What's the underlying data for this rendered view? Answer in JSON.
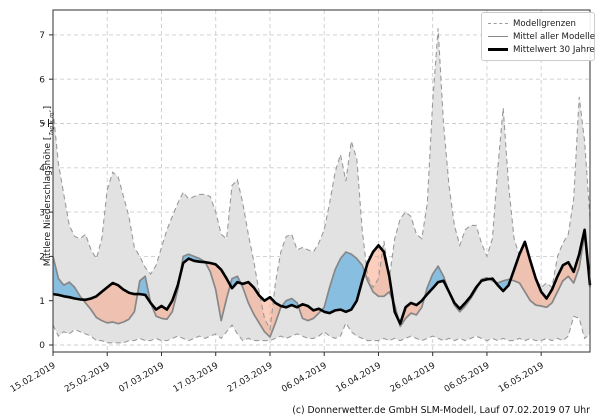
{
  "footer": {
    "text": "(c) Donnerwetter.de GmbH SLM-Modell, Lauf 07.02.2019 07 Uhr"
  },
  "chart_data": {
    "type": "line",
    "title": "",
    "ylabel_prefix": "Mittlere Niederschlagshöhe [",
    "ylabel_fraction_numerator": "L",
    "ylabel_fraction_denominator": "Tag × m²",
    "ylabel_suffix": "]",
    "x_start_date": "15.02.2019",
    "x_step_days": 1,
    "xlim": [
      0,
      99
    ],
    "ylim": [
      -0.16,
      7.56
    ],
    "grid": true,
    "x_tick_days": [
      0,
      10,
      20,
      30,
      40,
      50,
      60,
      70,
      80,
      90
    ],
    "x_tick_labels": [
      "15.02.2019",
      "25.02.2019",
      "07.03.2019",
      "17.03.2019",
      "27.03.2019",
      "06.04.2019",
      "16.04.2019",
      "26.04.2019",
      "06.05.2019",
      "16.05.2019"
    ],
    "y_ticks": [
      0,
      1,
      2,
      3,
      4,
      5,
      6,
      7
    ],
    "y_tick_labels": [
      "0",
      "1",
      "2",
      "3",
      "4",
      "5",
      "6",
      "7"
    ],
    "legend": {
      "position": "upper right",
      "entries": [
        {
          "label": "Modellgrenzen",
          "style": "dashed-gray"
        },
        {
          "label": "Mittel aller Modelle",
          "style": "solid-gray"
        },
        {
          "label": "Mittelwert 30 Jahre",
          "style": "solid-black-thick"
        }
      ]
    },
    "series": [
      {
        "name": "Modellgrenze oben",
        "role": "band-upper",
        "values": [
          5.3,
          4.1,
          3.4,
          2.7,
          2.45,
          2.4,
          2.5,
          2.15,
          1.95,
          2.4,
          3.5,
          3.9,
          3.8,
          3.35,
          2.9,
          2.2,
          2.0,
          1.75,
          1.6,
          1.8,
          2.2,
          2.6,
          2.9,
          3.2,
          3.45,
          3.3,
          3.35,
          3.4,
          3.4,
          3.35,
          3.0,
          2.5,
          2.4,
          3.6,
          3.73,
          3.2,
          2.5,
          1.9,
          1.2,
          0.6,
          0.35,
          1.4,
          2.1,
          2.45,
          2.5,
          2.15,
          2.2,
          2.15,
          2.1,
          2.3,
          2.6,
          3.2,
          3.9,
          4.3,
          3.7,
          4.6,
          4.2,
          2.6,
          1.55,
          1.3,
          1.5,
          2.35,
          1.5,
          2.4,
          2.85,
          3.0,
          2.9,
          2.5,
          2.4,
          3.2,
          5.5,
          7.15,
          5.0,
          3.6,
          2.7,
          2.25,
          2.6,
          2.7,
          2.7,
          2.3,
          2.0,
          2.4,
          4.0,
          5.35,
          3.6,
          2.4,
          2.0,
          2.3,
          1.9,
          1.5,
          1.3,
          1.4,
          1.3,
          2.0,
          2.3,
          2.5,
          3.3,
          5.6,
          4.6,
          2.85
        ]
      },
      {
        "name": "Modellgrenze unten",
        "role": "band-lower",
        "values": [
          0.45,
          0.2,
          0.3,
          0.25,
          0.35,
          0.3,
          0.25,
          0.2,
          0.1,
          0.1,
          0.05,
          0.05,
          0.05,
          0.05,
          0.1,
          0.1,
          0.15,
          0.1,
          0.1,
          0.15,
          0.1,
          0.1,
          0.15,
          0.2,
          0.15,
          0.1,
          0.15,
          0.2,
          0.15,
          0.2,
          0.25,
          0.15,
          0.3,
          0.45,
          0.25,
          0.1,
          0.15,
          0.1,
          0.1,
          0.1,
          0.1,
          0.15,
          0.2,
          0.15,
          0.2,
          0.25,
          0.2,
          0.15,
          0.15,
          0.2,
          0.3,
          0.2,
          0.15,
          0.2,
          0.5,
          0.3,
          0.2,
          0.15,
          0.1,
          0.1,
          0.1,
          0.15,
          0.1,
          0.15,
          0.1,
          0.15,
          0.2,
          0.15,
          0.1,
          0.15,
          0.2,
          0.15,
          0.1,
          0.15,
          0.1,
          0.15,
          0.1,
          0.15,
          0.2,
          0.15,
          0.1,
          0.15,
          0.1,
          0.15,
          0.1,
          0.1,
          0.15,
          0.1,
          0.15,
          0.1,
          0.1,
          0.15,
          0.1,
          0.15,
          0.1,
          0.2,
          0.65,
          0.6,
          0.15,
          0.25
        ]
      },
      {
        "name": "Mittel aller Modelle",
        "role": "model-mean",
        "values": [
          2.0,
          1.5,
          1.35,
          1.42,
          1.3,
          1.1,
          0.95,
          0.8,
          0.62,
          0.55,
          0.5,
          0.52,
          0.48,
          0.52,
          0.58,
          0.75,
          1.45,
          1.55,
          0.95,
          0.65,
          0.6,
          0.58,
          0.75,
          1.25,
          2.0,
          2.05,
          2.0,
          1.95,
          1.88,
          1.65,
          1.25,
          0.55,
          1.05,
          1.5,
          1.55,
          1.3,
          0.95,
          0.7,
          0.5,
          0.3,
          0.18,
          0.5,
          0.85,
          1.0,
          1.05,
          0.95,
          0.6,
          0.55,
          0.6,
          0.72,
          0.85,
          1.3,
          1.7,
          1.95,
          2.1,
          2.05,
          1.95,
          1.8,
          1.45,
          1.2,
          1.1,
          1.1,
          1.2,
          0.9,
          0.42,
          0.6,
          0.72,
          0.68,
          0.85,
          1.3,
          1.6,
          1.78,
          1.55,
          1.2,
          0.9,
          0.75,
          0.88,
          1.05,
          1.25,
          1.48,
          1.52,
          1.45,
          1.4,
          1.45,
          1.48,
          1.45,
          1.4,
          1.2,
          1.0,
          0.9,
          0.88,
          0.85,
          0.95,
          1.2,
          1.45,
          1.55,
          1.4,
          1.75,
          2.5,
          1.3
        ]
      },
      {
        "name": "Mittelwert 30 Jahre",
        "role": "mean-30y",
        "values": [
          1.15,
          1.13,
          1.1,
          1.08,
          1.05,
          1.03,
          1.02,
          1.05,
          1.1,
          1.2,
          1.3,
          1.4,
          1.35,
          1.25,
          1.18,
          1.15,
          1.15,
          1.13,
          0.95,
          0.8,
          0.88,
          0.8,
          1.0,
          1.35,
          1.85,
          1.95,
          1.9,
          1.88,
          1.87,
          1.85,
          1.82,
          1.7,
          1.5,
          1.28,
          1.42,
          1.38,
          1.42,
          1.3,
          1.12,
          1.0,
          1.08,
          0.95,
          0.88,
          0.85,
          0.9,
          0.85,
          0.92,
          0.88,
          0.78,
          0.82,
          0.75,
          0.72,
          0.78,
          0.8,
          0.75,
          0.8,
          1.0,
          1.45,
          1.85,
          2.1,
          2.25,
          2.1,
          1.55,
          0.75,
          0.48,
          0.85,
          0.95,
          0.9,
          1.0,
          1.15,
          1.28,
          1.42,
          1.45,
          1.2,
          0.95,
          0.82,
          0.95,
          1.1,
          1.3,
          1.45,
          1.48,
          1.5,
          1.35,
          1.22,
          1.35,
          1.7,
          2.05,
          2.33,
          1.9,
          1.5,
          1.2,
          1.05,
          1.25,
          1.55,
          1.8,
          1.87,
          1.65,
          2.05,
          2.6,
          1.35
        ]
      }
    ],
    "colors": {
      "band_fill": "#e2e2e2",
      "band_edge": "#9a9a9a",
      "model_mean_line": "#878787",
      "mean30_line": "#000000",
      "fill_model_above_mean30": "rgba(120,185,225,0.85)",
      "fill_model_below_mean30": "rgba(250,165,135,0.55)",
      "grid": "#cdcdcd",
      "spine": "#2f2f2f"
    }
  }
}
